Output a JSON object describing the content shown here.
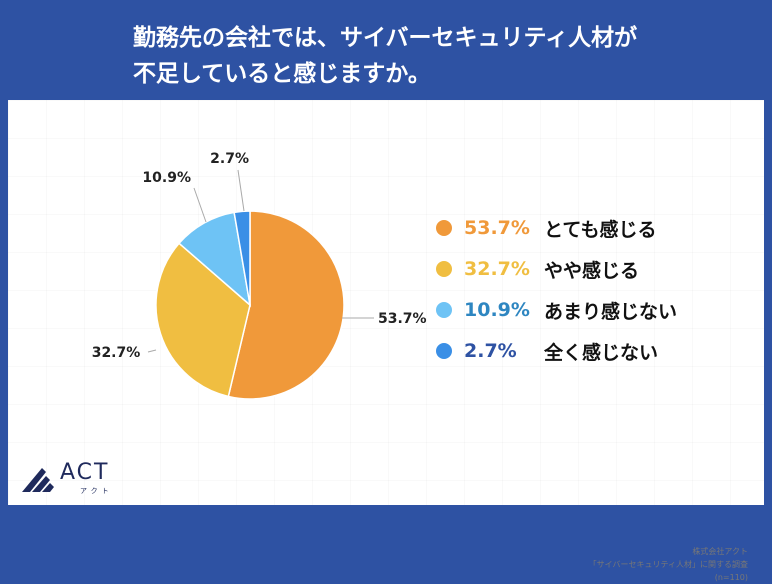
{
  "title": {
    "line1": "勤務先の会社では、サイバーセキュリティ人材が",
    "line2": "不足していると感じますか。"
  },
  "chart_data": {
    "type": "pie",
    "slices": [
      {
        "label": "とても感じる",
        "value": 53.7,
        "display": "53.7%",
        "color": "#F0993A"
      },
      {
        "label": "やや感じる",
        "value": 32.7,
        "display": "32.7%",
        "color": "#F0BE41"
      },
      {
        "label": "あまり感じない",
        "value": 10.9,
        "display": "10.9%",
        "color": "#6EC3F5"
      },
      {
        "label": "全く感じない",
        "value": 2.7,
        "display": "2.7%",
        "color": "#3A8FE6"
      }
    ],
    "start": "12 o'clock",
    "direction": "clockwise"
  },
  "footnote": {
    "line1": "株式会社アクト",
    "line2": "「サイバーセキュリティ人材」に関する調査",
    "line3": "(n=110)"
  },
  "logo": {
    "text": "ACT",
    "sub": "アクト",
    "color": "#1F2A5C"
  }
}
